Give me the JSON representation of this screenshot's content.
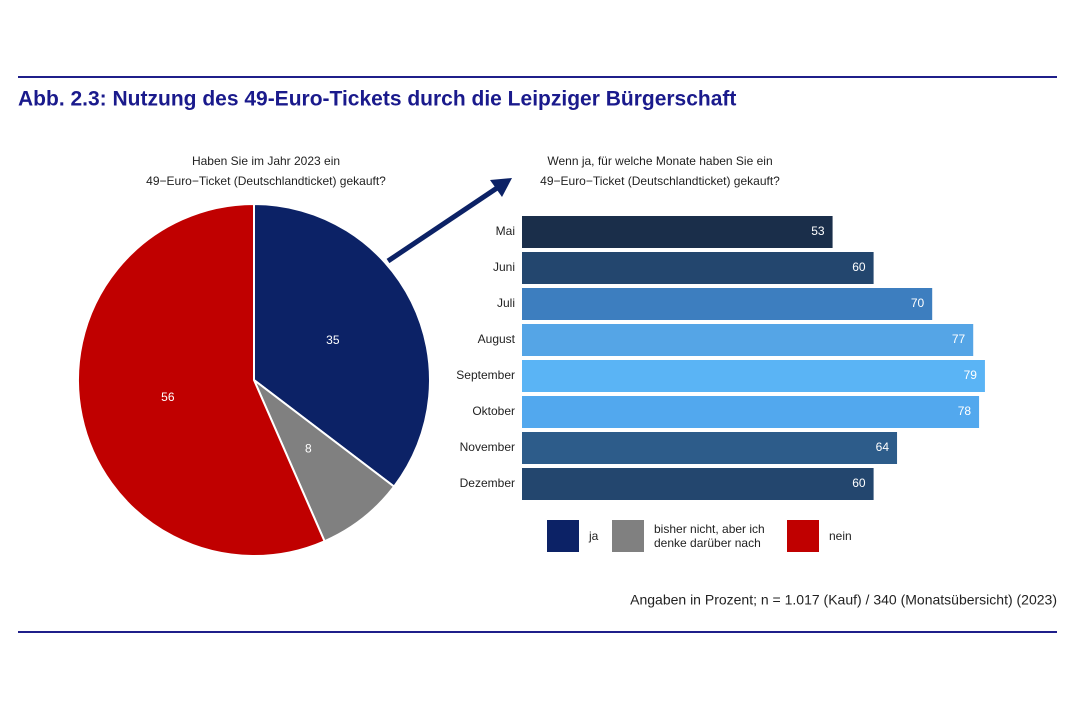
{
  "title": "Abb. 2.3: Nutzung des 49-Euro-Tickets durch die Leipziger Bürgerschaft",
  "footnote": "Angaben in Prozent; n = 1.017 (Kauf) / 340 (Monatsübersicht) (2023)",
  "chart_data": [
    {
      "type": "pie",
      "title": [
        "Haben Sie im Jahr 2023 ein",
        "49−Euro−Ticket (Deutschlandticket) gekauft?"
      ],
      "categories": [
        "ja",
        "bisher nicht, aber ich denke darüber nach",
        "nein"
      ],
      "values": [
        35,
        8,
        56
      ],
      "colors": [
        "#0c2266",
        "#808080",
        "#c00000"
      ]
    },
    {
      "type": "bar",
      "title": [
        "Wenn ja, für welche Monate haben Sie ein",
        "49−Euro−Ticket (Deutschlandticket) gekauft?"
      ],
      "categories": [
        "Mai",
        "Juni",
        "Juli",
        "August",
        "September",
        "Oktober",
        "November",
        "Dezember"
      ],
      "values": [
        53,
        60,
        70,
        77,
        79,
        78,
        64,
        60
      ],
      "colors": [
        "#1a2e4a",
        "#23466e",
        "#3d7ebf",
        "#55a5e6",
        "#5ab4f5",
        "#52a8ee",
        "#2d5c8a",
        "#23466e"
      ]
    }
  ]
}
